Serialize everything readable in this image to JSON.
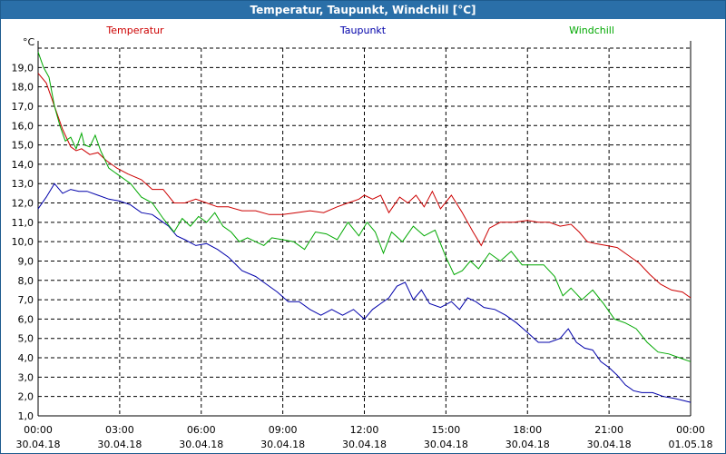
{
  "window": {
    "title": "Temperatur, Taupunkt, Windchill [°C]"
  },
  "chart_data": {
    "type": "line",
    "title": "Temperatur, Taupunkt, Windchill [°C]",
    "ylabel": "°C",
    "xlabel": "",
    "ylim": [
      1.0,
      20.0
    ],
    "grid": true,
    "legend_position": "top",
    "y_ticks": [
      1,
      2,
      3,
      4,
      5,
      6,
      7,
      8,
      9,
      10,
      11,
      12,
      13,
      14,
      15,
      16,
      17,
      18,
      19
    ],
    "y_tick_labels": [
      "1,0",
      "2,0",
      "3,0",
      "4,0",
      "5,0",
      "6,0",
      "7,0",
      "8,0",
      "9,0",
      "10,0",
      "11,0",
      "12,0",
      "13,0",
      "14,0",
      "15,0",
      "16,0",
      "17,0",
      "18,0",
      "19,0"
    ],
    "x_range_hours": [
      0,
      24
    ],
    "x_ticks": [
      {
        "hour": 0,
        "time": "00:00",
        "date": "30.04.18"
      },
      {
        "hour": 3,
        "time": "03:00",
        "date": "30.04.18"
      },
      {
        "hour": 6,
        "time": "06:00",
        "date": "30.04.18"
      },
      {
        "hour": 9,
        "time": "09:00",
        "date": "30.04.18"
      },
      {
        "hour": 12,
        "time": "12:00",
        "date": "30.04.18"
      },
      {
        "hour": 15,
        "time": "15:00",
        "date": "30.04.18"
      },
      {
        "hour": 18,
        "time": "18:00",
        "date": "30.04.18"
      },
      {
        "hour": 21,
        "time": "21:00",
        "date": "30.04.18"
      },
      {
        "hour": 24,
        "time": "00:00",
        "date": "01.05.18"
      }
    ],
    "series": [
      {
        "name": "Temperatur",
        "color": "#cc0000",
        "legend_align": "left",
        "x": [
          0,
          0.3,
          0.6,
          0.9,
          1.2,
          1.4,
          1.6,
          1.9,
          2.2,
          2.5,
          2.9,
          3.3,
          3.8,
          4.2,
          4.6,
          5.0,
          5.4,
          5.8,
          6.2,
          6.6,
          7.0,
          7.5,
          8.0,
          8.5,
          9.0,
          9.5,
          10.0,
          10.5,
          11.0,
          11.4,
          11.8,
          12.0,
          12.3,
          12.6,
          12.9,
          13.3,
          13.6,
          13.9,
          14.2,
          14.5,
          14.8,
          15.2,
          15.6,
          16.0,
          16.3,
          16.6,
          17.0,
          17.5,
          18.0,
          18.4,
          18.8,
          19.2,
          19.6,
          19.9,
          20.2,
          20.5,
          20.9,
          21.3,
          21.7,
          22.1,
          22.5,
          22.9,
          23.3,
          23.7,
          24.0
        ],
        "values": [
          18.7,
          18.2,
          17.0,
          15.8,
          14.9,
          14.7,
          14.8,
          14.5,
          14.6,
          14.2,
          13.8,
          13.5,
          13.2,
          12.7,
          12.7,
          12.0,
          12.0,
          12.2,
          12.0,
          11.8,
          11.8,
          11.6,
          11.6,
          11.4,
          11.4,
          11.5,
          11.6,
          11.5,
          11.8,
          12.0,
          12.2,
          12.4,
          12.2,
          12.4,
          11.5,
          12.3,
          12.0,
          12.4,
          11.8,
          12.6,
          11.7,
          12.4,
          11.5,
          10.5,
          9.8,
          10.7,
          11.0,
          11.0,
          11.1,
          11.0,
          11.0,
          10.8,
          10.9,
          10.5,
          10.0,
          9.9,
          9.8,
          9.7,
          9.3,
          8.9,
          8.3,
          7.8,
          7.5,
          7.4,
          7.1
        ]
      },
      {
        "name": "Taupunkt",
        "color": "#0000aa",
        "legend_align": "center",
        "x": [
          0,
          0.3,
          0.6,
          0.9,
          1.2,
          1.5,
          1.8,
          2.2,
          2.6,
          3.0,
          3.4,
          3.8,
          4.2,
          4.5,
          4.8,
          5.1,
          5.4,
          5.8,
          6.2,
          6.6,
          7.0,
          7.5,
          8.0,
          8.4,
          8.8,
          9.2,
          9.6,
          10.0,
          10.4,
          10.8,
          11.2,
          11.6,
          12.0,
          12.3,
          12.6,
          12.9,
          13.2,
          13.5,
          13.8,
          14.1,
          14.4,
          14.8,
          15.2,
          15.5,
          15.8,
          16.1,
          16.4,
          16.8,
          17.2,
          17.6,
          18.0,
          18.4,
          18.8,
          19.2,
          19.5,
          19.8,
          20.1,
          20.4,
          20.7,
          21.0,
          21.3,
          21.6,
          21.9,
          22.2,
          22.6,
          23.0,
          23.4,
          23.7,
          24.0
        ],
        "values": [
          11.7,
          12.3,
          13.0,
          12.5,
          12.7,
          12.6,
          12.6,
          12.4,
          12.2,
          12.1,
          11.9,
          11.5,
          11.4,
          11.1,
          10.8,
          10.3,
          10.1,
          9.8,
          9.9,
          9.6,
          9.2,
          8.5,
          8.2,
          7.8,
          7.4,
          6.9,
          6.9,
          6.5,
          6.2,
          6.5,
          6.2,
          6.5,
          6.0,
          6.5,
          6.8,
          7.1,
          7.7,
          7.9,
          7.0,
          7.5,
          6.8,
          6.6,
          6.9,
          6.5,
          7.1,
          6.9,
          6.6,
          6.5,
          6.2,
          5.8,
          5.3,
          4.8,
          4.8,
          5.0,
          5.5,
          4.8,
          4.5,
          4.4,
          3.8,
          3.5,
          3.1,
          2.6,
          2.3,
          2.2,
          2.2,
          2.0,
          1.9,
          1.8,
          1.7
        ]
      },
      {
        "name": "Windchill",
        "color": "#00a800",
        "legend_align": "right",
        "x": [
          0,
          0.2,
          0.4,
          0.6,
          0.8,
          1.0,
          1.2,
          1.4,
          1.6,
          1.7,
          1.9,
          2.1,
          2.3,
          2.6,
          3.0,
          3.4,
          3.8,
          4.2,
          4.6,
          5.0,
          5.3,
          5.6,
          5.9,
          6.2,
          6.5,
          6.8,
          7.1,
          7.4,
          7.7,
          8.0,
          8.3,
          8.6,
          9.0,
          9.4,
          9.8,
          10.2,
          10.6,
          11.0,
          11.4,
          11.8,
          12.1,
          12.4,
          12.7,
          13.0,
          13.4,
          13.8,
          14.2,
          14.6,
          15.0,
          15.3,
          15.6,
          15.9,
          16.2,
          16.6,
          17.0,
          17.4,
          17.8,
          18.2,
          18.6,
          19.0,
          19.3,
          19.6,
          20.0,
          20.4,
          20.8,
          21.2,
          21.6,
          22.0,
          22.4,
          22.8,
          23.2,
          23.6,
          24.0
        ],
        "values": [
          19.8,
          19.0,
          18.5,
          17.0,
          16.0,
          15.2,
          15.4,
          14.8,
          15.6,
          15.0,
          14.9,
          15.5,
          14.7,
          13.8,
          13.4,
          13.0,
          12.3,
          12.0,
          11.2,
          10.5,
          11.2,
          10.8,
          11.3,
          11.0,
          11.5,
          10.8,
          10.5,
          10.0,
          10.2,
          10.0,
          9.8,
          10.2,
          10.1,
          10.0,
          9.6,
          10.5,
          10.4,
          10.1,
          11.0,
          10.3,
          11.0,
          10.5,
          9.4,
          10.5,
          10.0,
          10.8,
          10.3,
          10.6,
          9.2,
          8.3,
          8.5,
          9.0,
          8.6,
          9.4,
          9.0,
          9.5,
          8.8,
          8.8,
          8.8,
          8.2,
          7.2,
          7.6,
          7.0,
          7.5,
          6.8,
          6.0,
          5.8,
          5.5,
          4.8,
          4.3,
          4.2,
          4.0,
          3.8
        ]
      }
    ]
  }
}
